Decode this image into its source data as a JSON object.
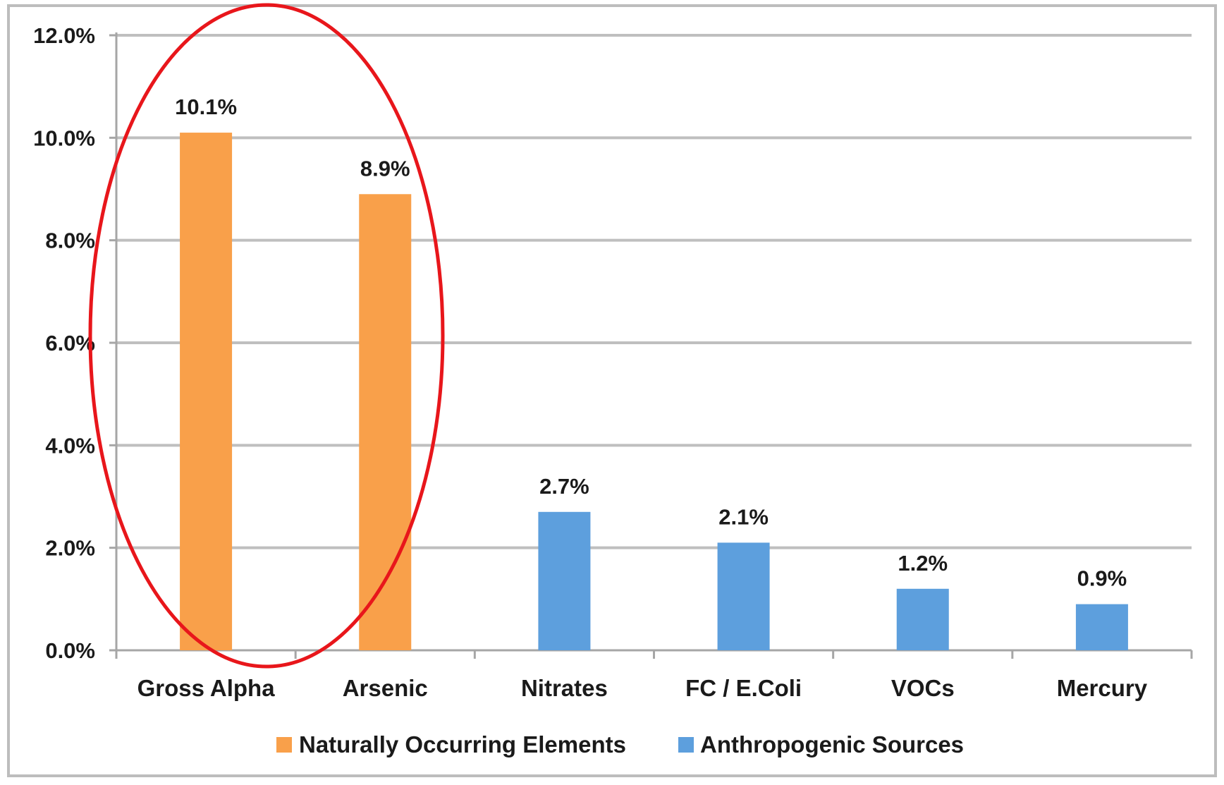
{
  "chart_data": {
    "type": "bar",
    "categories": [
      "Gross Alpha",
      "Arsenic",
      "Nitrates",
      "FC / E.Coli",
      "VOCs",
      "Mercury"
    ],
    "values": [
      10.1,
      8.9,
      2.7,
      2.1,
      1.2,
      0.9
    ],
    "data_labels": [
      "10.1%",
      "8.9%",
      "2.7%",
      "2.1%",
      "1.2%",
      "0.9%"
    ],
    "value_series": [
      "Naturally Occurring Elements",
      "Naturally Occurring Elements",
      "Anthropogenic Sources",
      "Anthropogenic Sources",
      "Anthropogenic Sources",
      "Anthropogenic Sources"
    ],
    "series": [
      {
        "name": "Naturally Occurring Elements",
        "color": "#f9a04a"
      },
      {
        "name": "Anthropogenic Sources",
        "color": "#5d9fdd"
      }
    ],
    "title": "",
    "xlabel": "",
    "ylabel": "",
    "ylim": [
      0,
      12
    ],
    "yticks": [
      0,
      2,
      4,
      6,
      8,
      10,
      12
    ],
    "ytick_labels": [
      "0.0%",
      "2.0%",
      "4.0%",
      "6.0%",
      "8.0%",
      "10.0%",
      "12.0%"
    ],
    "grid": true,
    "legend": "bottom",
    "annotation": {
      "shape": "ellipse",
      "color": "#e8161b",
      "encloses": [
        "Gross Alpha",
        "Arsenic"
      ]
    }
  }
}
